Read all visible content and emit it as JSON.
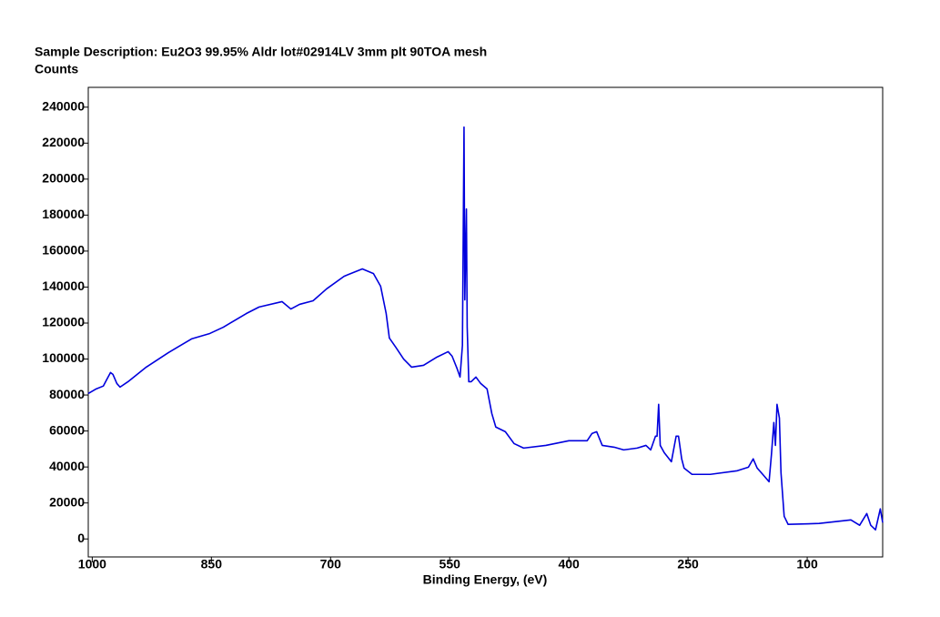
{
  "chart_data": {
    "type": "line",
    "title": "Sample Description:  Eu2O3 99.95% Aldr lot#02914LV 3mm plt 90TOA mesh",
    "y_label": "Counts",
    "x_label": "Binding Energy, (eV)",
    "color": "#0000dd",
    "xlim": [
      1005,
      5
    ],
    "ylim": [
      -10000,
      251000
    ],
    "xticks": [
      1000,
      850,
      700,
      550,
      400,
      250,
      100
    ],
    "yticks": [
      0,
      20000,
      40000,
      60000,
      80000,
      100000,
      120000,
      140000,
      160000,
      180000,
      200000,
      220000,
      240000
    ],
    "x": [
      1005,
      995,
      986,
      982,
      977,
      974,
      969,
      965,
      955,
      932,
      904,
      875,
      852,
      835,
      806,
      790,
      761,
      750,
      739,
      722,
      705,
      683,
      660,
      646,
      637,
      630,
      626,
      618,
      608,
      598,
      583,
      566,
      552,
      547,
      541,
      537,
      534,
      532,
      531,
      529,
      528,
      526,
      523,
      517,
      511,
      503,
      497,
      492,
      480,
      469,
      457,
      429,
      400,
      377,
      371,
      365,
      358,
      343,
      331,
      314,
      303,
      297,
      291,
      289,
      287,
      285,
      280,
      271,
      265,
      262,
      258,
      255,
      245,
      222,
      188,
      174,
      168,
      163,
      156,
      148,
      145,
      142,
      140,
      138,
      135,
      133,
      129,
      124,
      85,
      45,
      34,
      25,
      20,
      14,
      8,
      5
    ],
    "values": [
      80800,
      83400,
      85000,
      88400,
      92500,
      91500,
      86400,
      84400,
      87400,
      95500,
      103600,
      111200,
      114200,
      117700,
      125300,
      128900,
      131900,
      127800,
      130400,
      132400,
      139000,
      146000,
      150100,
      147500,
      140500,
      125300,
      111700,
      106600,
      100000,
      95500,
      96500,
      101100,
      104100,
      101600,
      95000,
      90000,
      107600,
      228900,
      132900,
      183400,
      117700,
      87400,
      87400,
      90000,
      86400,
      83400,
      69700,
      62200,
      59600,
      53000,
      50500,
      52000,
      54600,
      54600,
      58600,
      59600,
      52000,
      51000,
      49500,
      50500,
      52000,
      49500,
      57100,
      57100,
      74800,
      52000,
      48000,
      42900,
      57100,
      57100,
      44500,
      39400,
      35900,
      35900,
      37900,
      39900,
      44500,
      39400,
      35900,
      31800,
      47000,
      64700,
      52000,
      74800,
      67200,
      36900,
      12600,
      8100,
      8600,
      10600,
      7600,
      14100,
      7600,
      5100,
      16700,
      9100
    ]
  }
}
